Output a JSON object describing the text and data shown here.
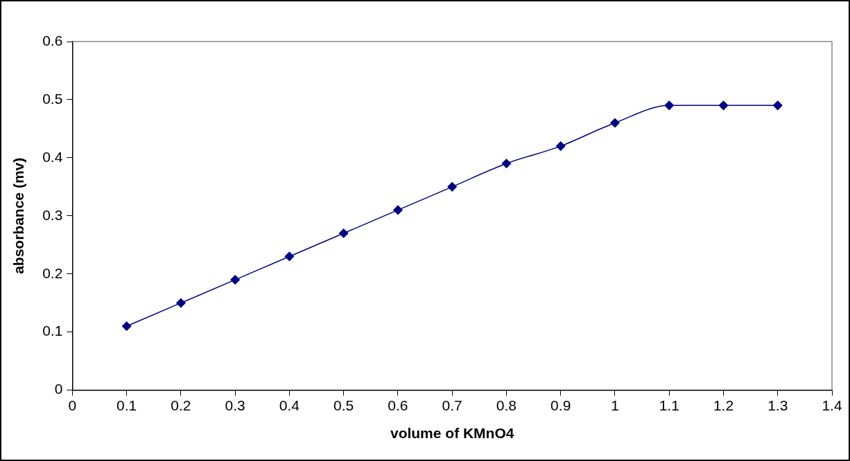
{
  "chart_data": {
    "type": "line",
    "xlabel": "volume of KMnO4",
    "ylabel": "absorbance (mv)",
    "x": [
      0.1,
      0.2,
      0.3,
      0.4,
      0.5,
      0.6,
      0.7,
      0.8,
      0.9,
      1,
      1.1,
      1.2,
      1.3
    ],
    "series": [
      {
        "color": "#000080",
        "values": [
          0.11,
          0.15,
          0.19,
          0.23,
          0.27,
          0.31,
          0.35,
          0.39,
          0.42,
          0.46,
          0.49,
          0.49,
          0.49
        ]
      }
    ],
    "xlim": [
      0,
      1.4
    ],
    "xticks": [
      0,
      0.1,
      0.2,
      0.3,
      0.4,
      0.5,
      0.6,
      0.7,
      0.8,
      0.9,
      1,
      1.1,
      1.2,
      1.3,
      1.4
    ],
    "ylim": [
      0,
      0.6
    ],
    "yticks": [
      0,
      0.1,
      0.2,
      0.3,
      0.4,
      0.5,
      0.6
    ],
    "grid": false,
    "legend": false,
    "marker": "diamond",
    "line_style": "solid"
  }
}
